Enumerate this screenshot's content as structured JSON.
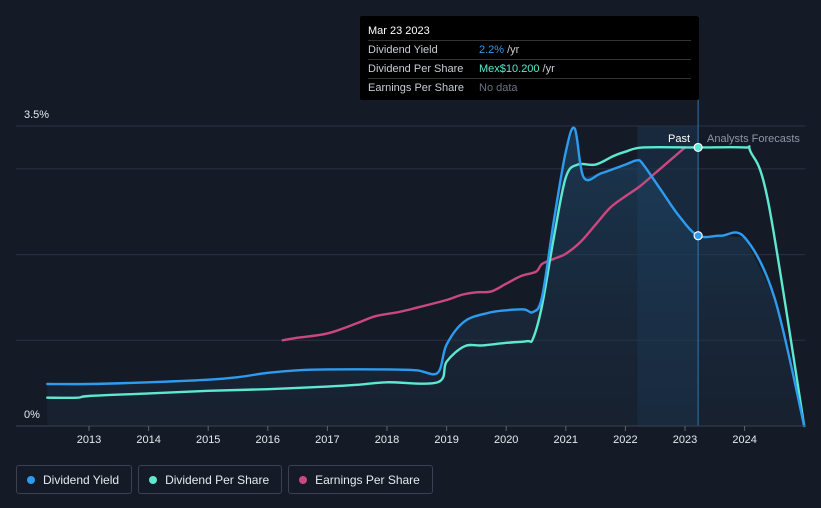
{
  "tooltip": {
    "date": "Mar 23 2023",
    "rows": [
      {
        "label": "Dividend Yield",
        "value": "2.2%",
        "unit": "/yr",
        "color": "#2d9cf0"
      },
      {
        "label": "Dividend Per Share",
        "value": "Mex$10.200",
        "unit": "/yr",
        "color": "#5ee8d0"
      },
      {
        "label": "Earnings Per Share",
        "value": "No data",
        "unit": "",
        "color": "#6b7280"
      }
    ]
  },
  "regions": {
    "past": "Past",
    "forecast": "Analysts Forecasts"
  },
  "legend": [
    {
      "label": "Dividend Yield",
      "color": "#2d9cf0"
    },
    {
      "label": "Dividend Per Share",
      "color": "#5ee8d0"
    },
    {
      "label": "Earnings Per Share",
      "color": "#c9487f"
    }
  ],
  "chart_data": {
    "type": "line",
    "y_labels": [
      "3.5%",
      "0%"
    ],
    "ylim": [
      0,
      3.5
    ],
    "xlim": [
      2012.3,
      2025.0
    ],
    "x_ticks": [
      2013,
      2014,
      2015,
      2016,
      2017,
      2018,
      2019,
      2020,
      2021,
      2022,
      2023,
      2024
    ],
    "x_tick_labels": [
      "2013",
      "2014",
      "2015",
      "2016",
      "2017",
      "2018",
      "2019",
      "2020",
      "2021",
      "2022",
      "2023",
      "2024"
    ],
    "grid": true,
    "marker_date": 2023.22,
    "series": [
      {
        "name": "Dividend Yield",
        "color": "#2d9cf0",
        "points": [
          [
            2012.3,
            0.49
          ],
          [
            2013.0,
            0.49
          ],
          [
            2014.0,
            0.51
          ],
          [
            2015.0,
            0.54
          ],
          [
            2015.5,
            0.57
          ],
          [
            2016.0,
            0.62
          ],
          [
            2016.5,
            0.65
          ],
          [
            2017.0,
            0.66
          ],
          [
            2018.0,
            0.66
          ],
          [
            2018.5,
            0.65
          ],
          [
            2018.85,
            0.62
          ],
          [
            2019.0,
            0.95
          ],
          [
            2019.3,
            1.22
          ],
          [
            2019.7,
            1.32
          ],
          [
            2020.0,
            1.35
          ],
          [
            2020.3,
            1.36
          ],
          [
            2020.45,
            1.33
          ],
          [
            2020.6,
            1.5
          ],
          [
            2020.8,
            2.4
          ],
          [
            2021.0,
            3.2
          ],
          [
            2021.15,
            3.47
          ],
          [
            2021.3,
            2.9
          ],
          [
            2021.6,
            2.95
          ],
          [
            2022.0,
            3.05
          ],
          [
            2022.2,
            3.1
          ],
          [
            2022.3,
            3.05
          ],
          [
            2022.6,
            2.75
          ],
          [
            2022.9,
            2.45
          ],
          [
            2023.22,
            2.22
          ],
          [
            2023.6,
            2.22
          ],
          [
            2024.0,
            2.2
          ],
          [
            2024.5,
            1.5
          ],
          [
            2025.0,
            0.0
          ]
        ]
      },
      {
        "name": "Dividend Per Share",
        "color": "#5ee8d0",
        "points": [
          [
            2012.3,
            0.33
          ],
          [
            2012.8,
            0.33
          ],
          [
            2013.0,
            0.35
          ],
          [
            2014.0,
            0.38
          ],
          [
            2015.0,
            0.41
          ],
          [
            2016.0,
            0.43
          ],
          [
            2017.0,
            0.46
          ],
          [
            2017.5,
            0.48
          ],
          [
            2018.0,
            0.51
          ],
          [
            2018.85,
            0.51
          ],
          [
            2019.0,
            0.75
          ],
          [
            2019.3,
            0.93
          ],
          [
            2019.6,
            0.94
          ],
          [
            2020.0,
            0.97
          ],
          [
            2020.35,
            0.99
          ],
          [
            2020.45,
            1.02
          ],
          [
            2020.6,
            1.4
          ],
          [
            2020.8,
            2.2
          ],
          [
            2021.0,
            2.9
          ],
          [
            2021.2,
            3.05
          ],
          [
            2021.5,
            3.05
          ],
          [
            2021.8,
            3.15
          ],
          [
            2022.0,
            3.2
          ],
          [
            2022.3,
            3.25
          ],
          [
            2023.22,
            3.25
          ],
          [
            2024.0,
            3.25
          ],
          [
            2024.1,
            3.2
          ],
          [
            2024.4,
            2.6
          ],
          [
            2025.0,
            0.0
          ]
        ]
      },
      {
        "name": "Earnings Per Share",
        "color": "#c9487f",
        "points": [
          [
            2016.25,
            1.0
          ],
          [
            2016.5,
            1.03
          ],
          [
            2017.0,
            1.08
          ],
          [
            2017.5,
            1.2
          ],
          [
            2017.8,
            1.28
          ],
          [
            2018.2,
            1.33
          ],
          [
            2018.5,
            1.38
          ],
          [
            2019.0,
            1.47
          ],
          [
            2019.25,
            1.53
          ],
          [
            2019.5,
            1.56
          ],
          [
            2019.75,
            1.57
          ],
          [
            2020.0,
            1.66
          ],
          [
            2020.25,
            1.75
          ],
          [
            2020.5,
            1.8
          ],
          [
            2020.6,
            1.89
          ],
          [
            2020.8,
            1.95
          ],
          [
            2021.0,
            2.01
          ],
          [
            2021.25,
            2.15
          ],
          [
            2021.5,
            2.35
          ],
          [
            2021.75,
            2.55
          ],
          [
            2022.0,
            2.68
          ],
          [
            2022.25,
            2.8
          ],
          [
            2022.5,
            2.95
          ],
          [
            2022.75,
            3.1
          ],
          [
            2023.0,
            3.25
          ]
        ]
      }
    ]
  }
}
